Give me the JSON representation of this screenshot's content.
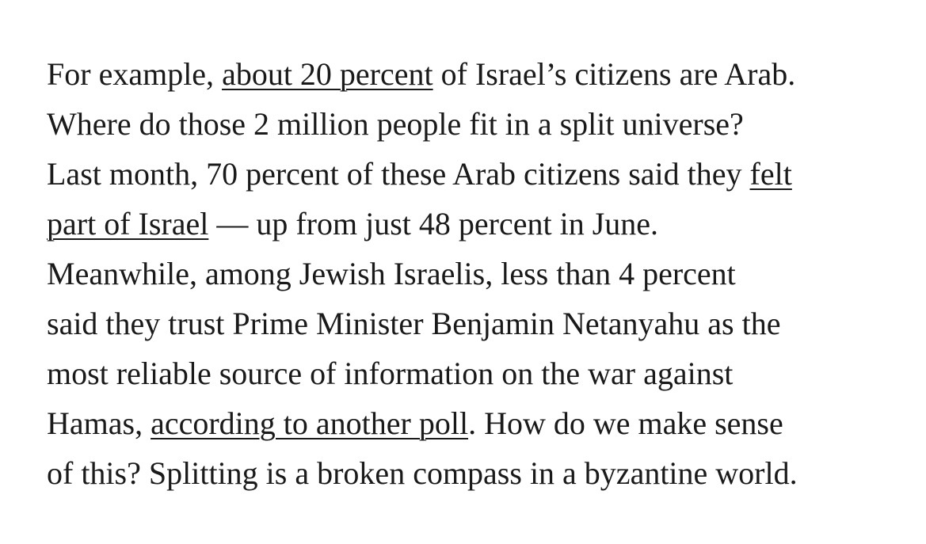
{
  "article": {
    "lines": [
      {
        "segments": [
          {
            "text": "For example, ",
            "link": false
          },
          {
            "text": "about 20 percent",
            "link": true
          },
          {
            "text": " of Israel’s citizens are Arab.",
            "link": false
          }
        ]
      },
      {
        "segments": [
          {
            "text": "Where do those 2 million people fit in a split universe?",
            "link": false
          }
        ]
      },
      {
        "segments": [
          {
            "text": "Last month, 70 percent of these Arab citizens said they ",
            "link": false
          },
          {
            "text": "felt",
            "link": true
          }
        ]
      },
      {
        "segments": [
          {
            "text": "part of Israel",
            "link": true
          },
          {
            "text": " — up from just 48 percent in June.",
            "link": false
          }
        ]
      },
      {
        "segments": [
          {
            "text": "Meanwhile, among Jewish Israelis, less than 4 percent",
            "link": false
          }
        ]
      },
      {
        "segments": [
          {
            "text": "said they trust Prime Minister Benjamin Netanyahu as the",
            "link": false
          }
        ]
      },
      {
        "segments": [
          {
            "text": "most reliable source of information on the war against",
            "link": false
          }
        ]
      },
      {
        "segments": [
          {
            "text": "Hamas, ",
            "link": false
          },
          {
            "text": "according to another poll",
            "link": true
          },
          {
            "text": ". How do we make sense",
            "link": false
          }
        ]
      },
      {
        "segments": [
          {
            "text": "of this? Splitting is a broken compass in a byzantine world.",
            "link": false
          }
        ]
      }
    ]
  }
}
